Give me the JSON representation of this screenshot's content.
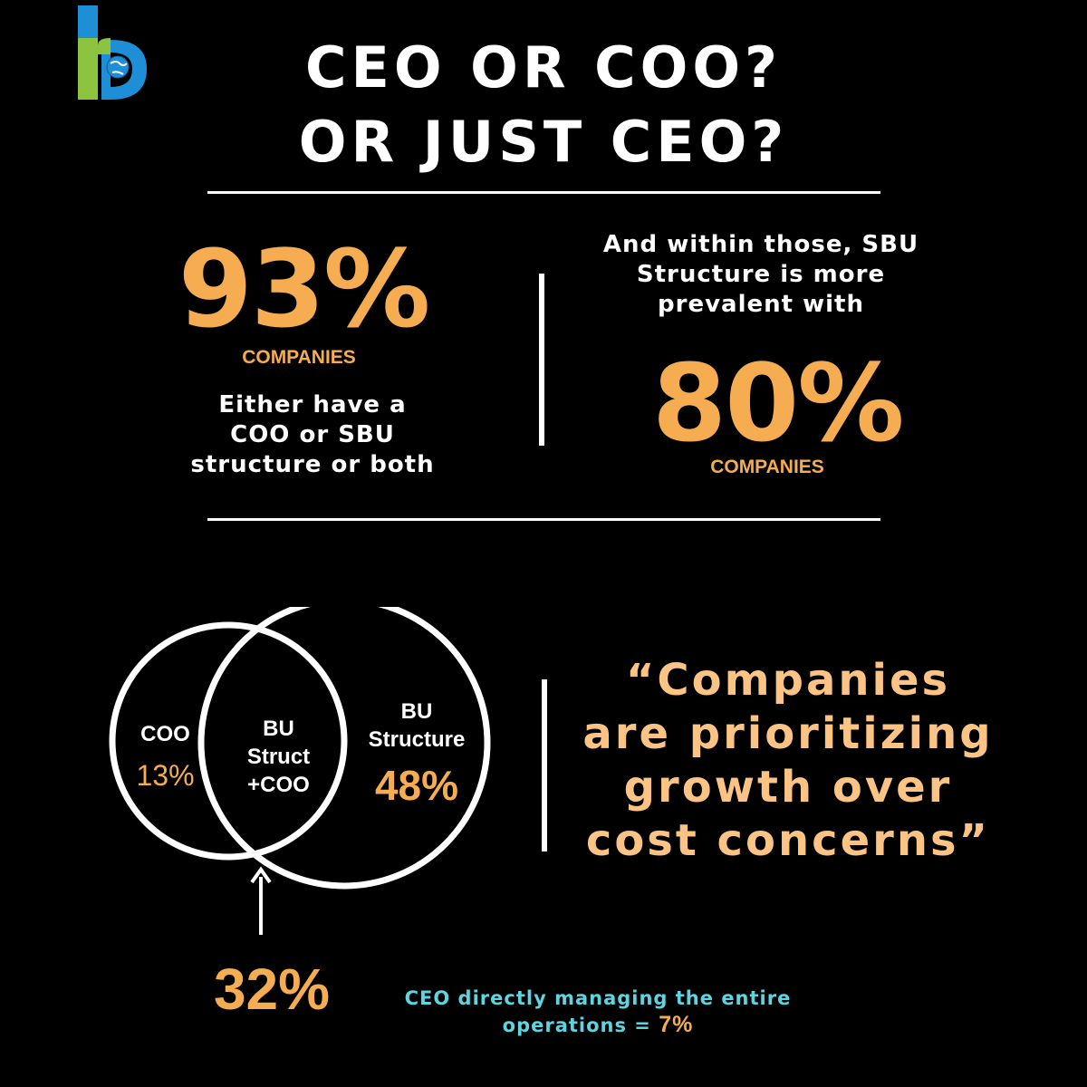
{
  "logo": {
    "name": "logo-icon"
  },
  "title": {
    "line1": "CEO OR COO?",
    "line2": "OR JUST CEO?"
  },
  "left_stat": {
    "value": "93%",
    "label": "COMPANIES",
    "description_lines": [
      "Either have a",
      "COO or SBU",
      "structure or both"
    ]
  },
  "right_stat": {
    "intro_lines": [
      "And within those, SBU",
      "Structure is more",
      "prevalent with"
    ],
    "value": "80%",
    "label": "COMPANIES"
  },
  "venn": {
    "left": {
      "label": "COO",
      "value": "13%"
    },
    "overlap": {
      "label_lines": [
        "BU",
        "Struct",
        "+COO"
      ]
    },
    "right": {
      "label_lines": [
        "BU",
        "Structure"
      ],
      "value": "48%"
    },
    "overlap_value": "32%"
  },
  "quote": {
    "lines": [
      "“Companies",
      "are prioritizing",
      "growth over",
      "cost concerns”"
    ]
  },
  "ceo_note": {
    "line1": "CEO directly managing the entire",
    "line2": "operations =",
    "value": "7%"
  },
  "colors": {
    "accent_orange": "#f6ad52",
    "quote_peach": "#fbc384",
    "note_cyan": "#5ed4e0",
    "logo_blue": "#1e8fd6",
    "logo_green": "#8cc43f"
  }
}
